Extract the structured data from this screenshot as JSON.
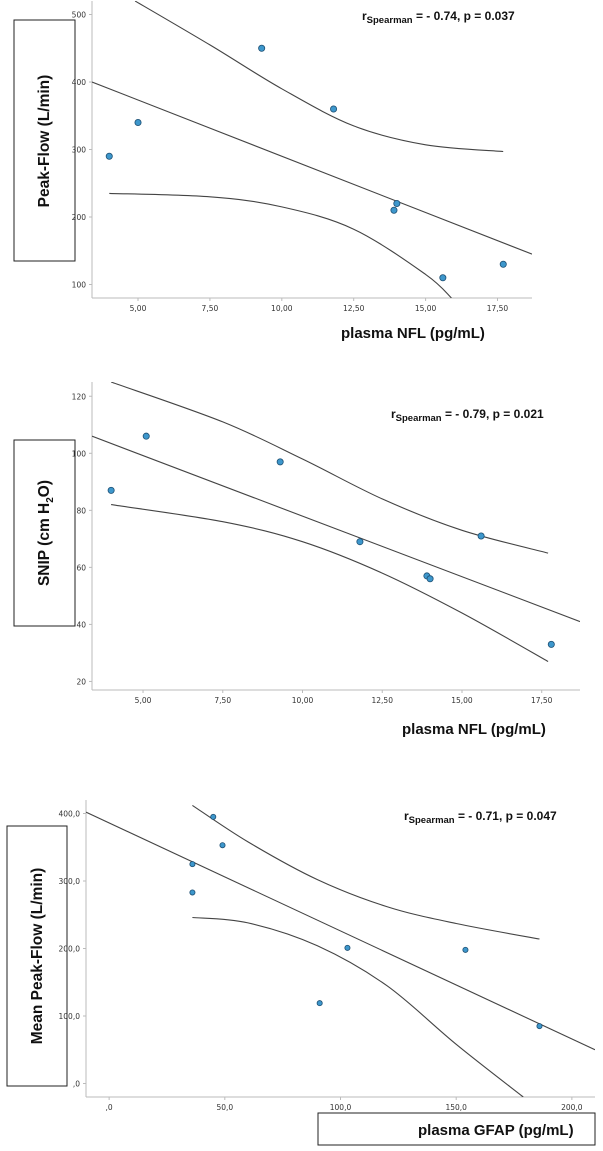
{
  "chart_data": [
    {
      "type": "scatter",
      "title": "",
      "xlabel": "plasma NFL (pg/mL)",
      "ylabel": "Peak-Flow  (L/min)",
      "xlim": [
        3.4,
        18.7
      ],
      "ylim": [
        80,
        520
      ],
      "x_ticks": [
        5,
        7.5,
        10,
        12.5,
        15,
        17.5
      ],
      "x_tick_labels": [
        "5,00",
        "7,50",
        "10,00",
        "12,50",
        "15,00",
        "17,50"
      ],
      "y_ticks": [
        100,
        200,
        300,
        400,
        500
      ],
      "y_tick_labels": [
        "100",
        "200",
        "300",
        "400",
        "500"
      ],
      "stat": {
        "r": "r",
        "sub": "Spearman",
        "rest": " = - 0.74, p = 0.037"
      },
      "points": [
        [
          4.0,
          290
        ],
        [
          5.0,
          340
        ],
        [
          9.3,
          450
        ],
        [
          11.8,
          360
        ],
        [
          13.9,
          210
        ],
        [
          14.0,
          220
        ],
        [
          15.6,
          110
        ],
        [
          17.7,
          130
        ]
      ],
      "fit_line": [
        [
          3.4,
          400
        ],
        [
          18.7,
          145
        ]
      ],
      "ci_upper": [
        [
          4.9,
          520
        ],
        [
          7.5,
          455
        ],
        [
          10.0,
          390
        ],
        [
          12.5,
          335
        ],
        [
          15.0,
          307
        ],
        [
          17.7,
          297
        ]
      ],
      "ci_lower": [
        [
          4.0,
          235
        ],
        [
          7.5,
          230
        ],
        [
          10.0,
          215
        ],
        [
          12.5,
          182
        ],
        [
          15.0,
          115
        ],
        [
          15.9,
          80
        ]
      ]
    },
    {
      "type": "scatter",
      "title": "",
      "xlabel": "plasma NFL (pg/mL)",
      "ylabel": "SNIP (cm H",
      "ylabel_sub": "2",
      "ylabel_end": "O)",
      "xlim": [
        3.4,
        18.7
      ],
      "ylim": [
        17,
        125
      ],
      "x_ticks": [
        5,
        7.5,
        10,
        12.5,
        15,
        17.5
      ],
      "x_tick_labels": [
        "5,00",
        "7,50",
        "10,00",
        "12,50",
        "15,00",
        "17,50"
      ],
      "y_ticks": [
        20,
        40,
        60,
        80,
        100,
        120
      ],
      "y_tick_labels": [
        "20",
        "40",
        "60",
        "80",
        "100",
        "120"
      ],
      "stat": {
        "r": "r",
        "sub": "Spearman",
        "rest": " = - 0.79, p = 0.021"
      },
      "points": [
        [
          4.0,
          87
        ],
        [
          5.1,
          106
        ],
        [
          9.3,
          97
        ],
        [
          11.8,
          69
        ],
        [
          13.9,
          57
        ],
        [
          14.0,
          56
        ],
        [
          15.6,
          71
        ],
        [
          17.8,
          33
        ]
      ],
      "fit_line": [
        [
          3.4,
          106
        ],
        [
          18.7,
          41
        ]
      ],
      "ci_upper": [
        [
          4.0,
          125
        ],
        [
          7.5,
          111
        ],
        [
          10.0,
          98
        ],
        [
          12.5,
          84
        ],
        [
          15.0,
          73
        ],
        [
          17.7,
          65
        ]
      ],
      "ci_lower": [
        [
          4.0,
          82
        ],
        [
          7.5,
          76
        ],
        [
          10.0,
          69
        ],
        [
          12.5,
          58
        ],
        [
          15.0,
          44
        ],
        [
          17.7,
          27
        ]
      ]
    },
    {
      "type": "scatter",
      "title": "",
      "xlabel": "plasma GFAP (pg/mL)",
      "ylabel": "Mean Peak-Flow  (L/min)",
      "xlim": [
        -10,
        210
      ],
      "ylim": [
        -20,
        420
      ],
      "x_ticks": [
        0,
        50,
        100,
        150,
        200
      ],
      "x_tick_labels": [
        ",0",
        "50,0",
        "100,0",
        "150,0",
        "200,0"
      ],
      "y_ticks": [
        0,
        100,
        200,
        300,
        400
      ],
      "y_tick_labels": [
        ",0",
        "100,0",
        "200,0",
        "300,0",
        "400,0"
      ],
      "stat": {
        "r": "r",
        "sub": "Spearman",
        "rest": " = - 0.71, p = 0.047"
      },
      "points": [
        [
          36,
          283
        ],
        [
          36,
          325
        ],
        [
          45,
          395
        ],
        [
          49,
          353
        ],
        [
          91,
          119
        ],
        [
          103,
          201
        ],
        [
          154,
          198
        ],
        [
          186,
          85
        ]
      ],
      "fit_line": [
        [
          -10,
          402
        ],
        [
          210,
          50
        ]
      ],
      "ci_upper": [
        [
          36,
          412
        ],
        [
          60,
          358
        ],
        [
          90,
          302
        ],
        [
          120,
          262
        ],
        [
          150,
          237
        ],
        [
          186,
          214
        ]
      ],
      "ci_lower": [
        [
          36,
          246
        ],
        [
          60,
          238
        ],
        [
          90,
          204
        ],
        [
          120,
          145
        ],
        [
          150,
          58
        ],
        [
          179,
          -20
        ]
      ]
    }
  ]
}
